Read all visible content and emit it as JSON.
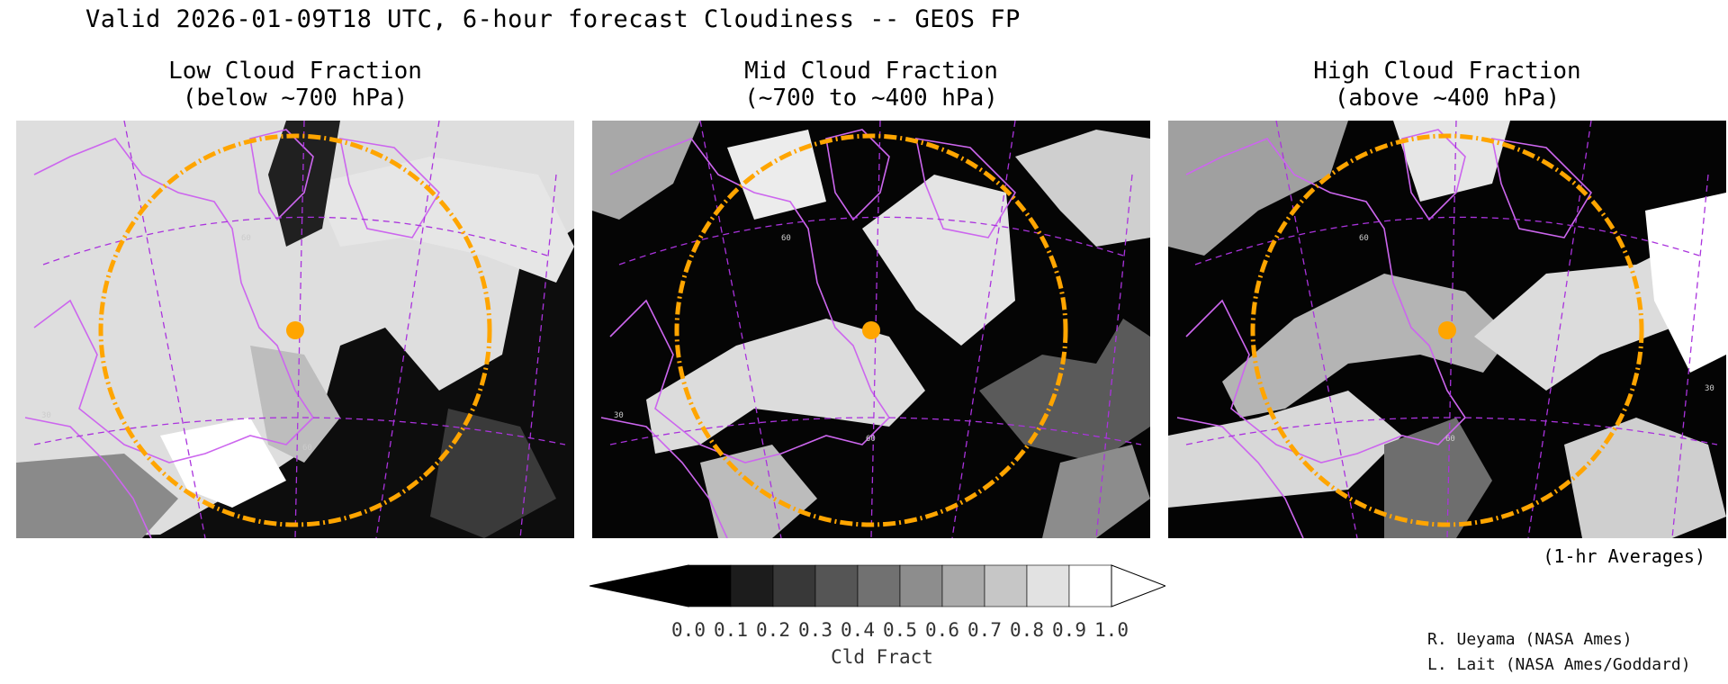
{
  "title": "Valid 2026-01-09T18 UTC, 6-hour forecast Cloudiness -- GEOS FP",
  "panels": [
    {
      "title_line1": "Low Cloud Fraction",
      "title_line2": "(below ~700 hPa)",
      "lat_labels": [
        "60",
        "60",
        "30"
      ]
    },
    {
      "title_line1": "Mid Cloud Fraction",
      "title_line2": "(~700 to ~400 hPa)",
      "lat_labels": [
        "60",
        "60",
        "30"
      ]
    },
    {
      "title_line1": "High Cloud Fraction",
      "title_line2": "(above ~400 hPa)",
      "lat_labels": [
        "60",
        "60",
        "30"
      ]
    }
  ],
  "averages_note": "(1-hr Averages)",
  "colorbar": {
    "label": "Cld Fract",
    "ticks": [
      "0.0",
      "0.1",
      "0.2",
      "0.3",
      "0.4",
      "0.5",
      "0.6",
      "0.7",
      "0.8",
      "0.9",
      "1.0"
    ],
    "colors": [
      "#000000",
      "#1c1c1c",
      "#383838",
      "#555555",
      "#717171",
      "#8d8d8d",
      "#aaaaaa",
      "#c6c6c6",
      "#e2e2e2",
      "#ffffff"
    ]
  },
  "credits": [
    "R. Ueyama (NASA Ames)",
    "L. Lait (NASA Ames/Goddard)"
  ],
  "colors": {
    "coastline": "#cc66ee",
    "range_ring": "#ffa500",
    "gridline": "#aa33dd"
  }
}
